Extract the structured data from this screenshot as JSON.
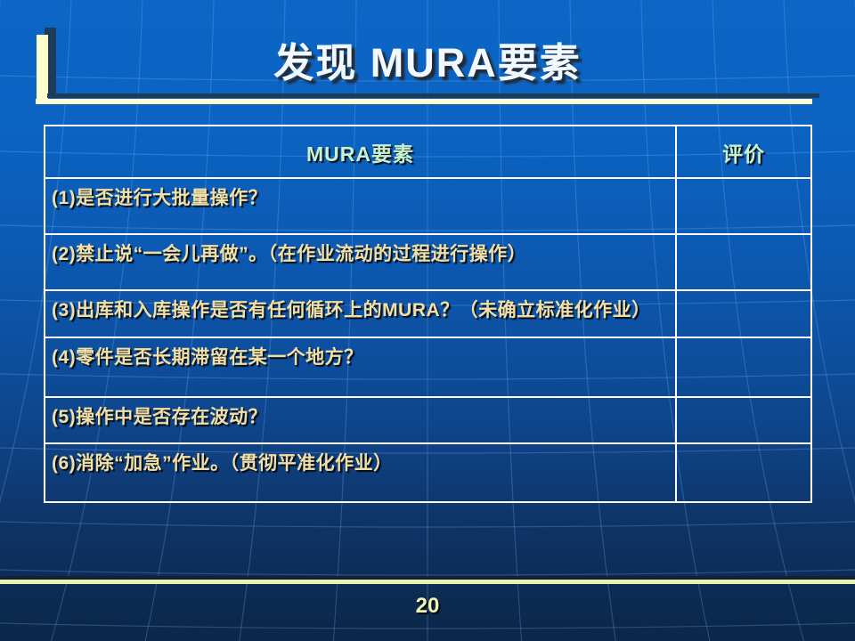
{
  "slide": {
    "title": "发现 MURA要素",
    "page_number": "20"
  },
  "table": {
    "header": {
      "factor": "MURA要素",
      "evaluation": "评价"
    },
    "rows": [
      {
        "factor": "(1)是否进行大批量操作？",
        "evaluation": ""
      },
      {
        "factor": "(2)禁止说“一会儿再做”。（在作业流动的过程进行操作）",
        "evaluation": ""
      },
      {
        "factor": "(3)出库和入库操作是否有任何循环上的MURA？（未确立标准化作业）",
        "evaluation": ""
      },
      {
        "factor": "(4)零件是否长期滞留在某一个地方？",
        "evaluation": ""
      },
      {
        "factor": "(5)操作中是否存在波动？",
        "evaluation": ""
      },
      {
        "factor": "(6)消除“加急”作业。（贯彻平准化作业）",
        "evaluation": ""
      }
    ]
  },
  "colors": {
    "background_top": "#0b66c6",
    "background_bottom": "#0c2749",
    "accent_bar_yellow": "#ffffcc",
    "bottom_line_yellow": "#e9f2ae",
    "shadow_dark": "#1d3c5a",
    "table_border": "#ffffff",
    "title_text": "#f2f8ff",
    "header_text": "#c8f2cf",
    "row_text": "#f0e0a8",
    "page_number_text": "#edf5b5",
    "grid_line": "#8cc3ff"
  }
}
